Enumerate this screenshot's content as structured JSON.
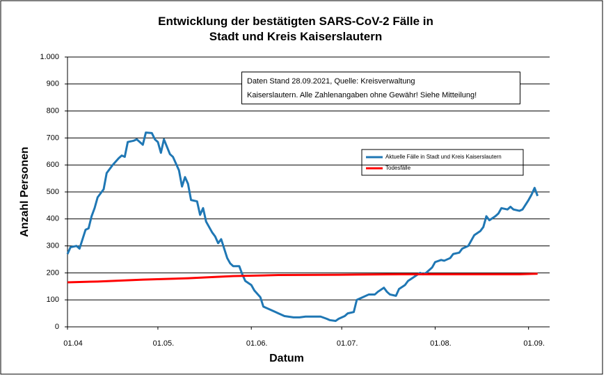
{
  "chart_data": {
    "type": "line",
    "title": "Entwicklung der bestätigten SARS-CoV-2 Fälle in\nStadt und Kreis Kaiserslautern",
    "annotation": "Daten Stand 28.09.2021, Quelle: Kreisverwaltung\nKaiserslautern. Alle Zahlenangaben ohne Gewähr! Siehe Mitteilung!",
    "xlabel": "Datum",
    "ylabel": "Anzahl Personen",
    "xlim": [
      0,
      160
    ],
    "xticks": [
      {
        "value": 0,
        "label": "01.04"
      },
      {
        "value": 30,
        "label": "01.05."
      },
      {
        "value": 61,
        "label": "01.06."
      },
      {
        "value": 91,
        "label": "01.07."
      },
      {
        "value": 122,
        "label": "01.08."
      },
      {
        "value": 153,
        "label": "01.09."
      }
    ],
    "ylim": [
      0,
      1000
    ],
    "yticks": [
      0,
      100,
      200,
      300,
      400,
      500,
      600,
      700,
      800,
      900,
      {
        "value": 1000,
        "label": "1.000"
      }
    ],
    "grid": true,
    "series": [
      {
        "name": "Aktuelle Fälle in Stadt und Kreis Kaiserslautern",
        "color": "#1f77b4",
        "x": [
          0,
          1,
          3,
          4,
          6,
          7,
          8,
          9,
          10,
          12,
          13,
          15,
          17,
          18,
          19,
          20,
          22,
          23,
          25,
          26,
          28,
          29,
          30,
          31,
          32,
          34,
          35,
          37,
          38,
          39,
          40,
          41,
          43,
          44,
          45,
          46,
          48,
          49,
          50,
          51,
          53,
          54,
          55,
          57,
          58,
          59,
          61,
          62,
          64,
          65,
          67,
          69,
          70,
          72,
          75,
          77,
          79,
          81,
          84,
          86,
          87,
          89,
          90,
          92,
          93,
          95,
          96,
          98,
          100,
          102,
          103,
          105,
          106,
          107,
          109,
          110,
          112,
          113,
          115,
          117,
          118,
          119,
          121,
          122,
          124,
          125,
          127,
          128,
          130,
          131,
          133,
          135,
          137,
          138,
          139,
          140,
          142,
          143,
          144,
          146,
          147,
          148,
          150,
          151,
          153,
          154,
          155,
          156
        ],
        "values": [
          270,
          295,
          300,
          290,
          360,
          365,
          410,
          440,
          480,
          510,
          570,
          600,
          625,
          635,
          630,
          685,
          690,
          695,
          675,
          720,
          718,
          695,
          685,
          645,
          695,
          640,
          630,
          580,
          520,
          555,
          530,
          470,
          465,
          415,
          440,
          390,
          350,
          335,
          310,
          325,
          255,
          235,
          225,
          225,
          195,
          170,
          155,
          135,
          110,
          75,
          65,
          55,
          50,
          40,
          35,
          35,
          38,
          38,
          38,
          30,
          25,
          22,
          30,
          40,
          50,
          55,
          100,
          110,
          120,
          120,
          130,
          145,
          130,
          120,
          115,
          140,
          155,
          170,
          185,
          200,
          195,
          200,
          220,
          240,
          248,
          245,
          255,
          270,
          275,
          290,
          300,
          340,
          355,
          370,
          410,
          395,
          410,
          420,
          440,
          435,
          445,
          435,
          430,
          435,
          470,
          490,
          515,
          485
        ]
      },
      {
        "name": "Todesfälle",
        "color": "#ff0000",
        "x": [
          0,
          10,
          25,
          40,
          55,
          70,
          90,
          110,
          130,
          150,
          156
        ],
        "values": [
          165,
          168,
          175,
          180,
          188,
          192,
          193,
          195,
          195,
          195,
          197
        ]
      }
    ]
  }
}
